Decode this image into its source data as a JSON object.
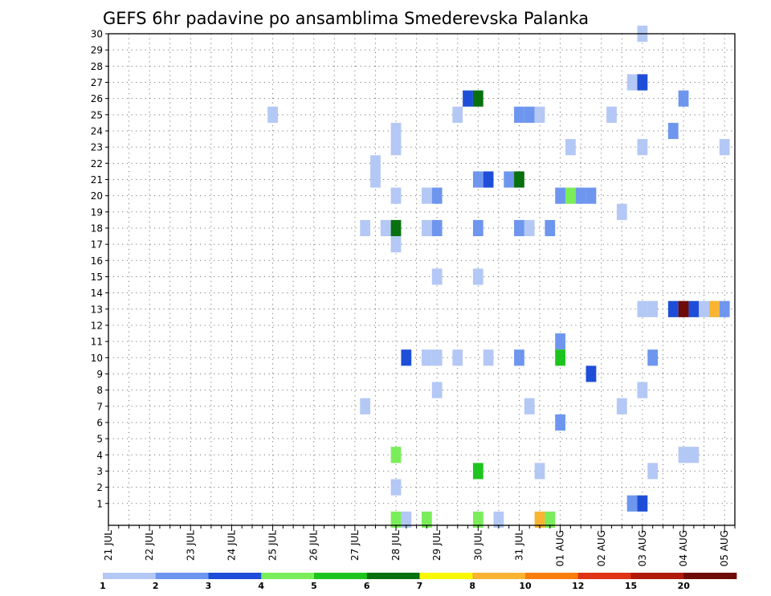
{
  "chart_data": {
    "type": "heatmap",
    "title": "GEFS 6hr padavine po ansamblima Smederevska Palanka",
    "xlabel": "",
    "ylabel": "",
    "x_start": "21 JUL 00Z",
    "x_step_hours": 6,
    "x_steps": 61,
    "xlim": [
      0,
      61
    ],
    "ylim": [
      0,
      30
    ],
    "grid": true,
    "x_ticks": [
      {
        "t": 0,
        "label": "21 JUL"
      },
      {
        "t": 4,
        "label": "22 JUL"
      },
      {
        "t": 8,
        "label": "23 JUL"
      },
      {
        "t": 12,
        "label": "24 JUL"
      },
      {
        "t": 16,
        "label": "25 JUL"
      },
      {
        "t": 20,
        "label": "26 JUL"
      },
      {
        "t": 24,
        "label": "27 JUL"
      },
      {
        "t": 28,
        "label": "28 JUL"
      },
      {
        "t": 32,
        "label": "29 JUL"
      },
      {
        "t": 36,
        "label": "30 JUL"
      },
      {
        "t": 40,
        "label": "31 JUL"
      },
      {
        "t": 44,
        "label": "01 AUG"
      },
      {
        "t": 48,
        "label": "02 AUG"
      },
      {
        "t": 52,
        "label": "03 AUG"
      },
      {
        "t": 56,
        "label": "04 AUG"
      },
      {
        "t": 60,
        "label": "05 AUG"
      }
    ],
    "y_ticks": [
      1,
      2,
      3,
      4,
      5,
      6,
      7,
      8,
      9,
      10,
      11,
      12,
      13,
      14,
      15,
      16,
      17,
      18,
      19,
      20,
      21,
      22,
      23,
      24,
      25,
      26,
      27,
      28,
      29,
      30
    ],
    "legend": {
      "placement": "bottom",
      "colors": [
        "#b4c8f5",
        "#6e96ee",
        "#1e4ed8",
        "#7aee5a",
        "#1ec41e",
        "#08700e",
        "#f8f800",
        "#fab432",
        "#f87e0e",
        "#e03214",
        "#b01a0a",
        "#6e0a08"
      ],
      "labels": [
        {
          "i": 0,
          "text": "1"
        },
        {
          "i": 1,
          "text": "2"
        },
        {
          "i": 2,
          "text": "3"
        },
        {
          "i": 3,
          "text": "4"
        },
        {
          "i": 4,
          "text": "5"
        },
        {
          "i": 5,
          "text": "6"
        },
        {
          "i": 6,
          "text": "7"
        },
        {
          "i": 7,
          "text": "8"
        },
        {
          "i": 8,
          "text": "10"
        },
        {
          "i": 9,
          "text": "12"
        },
        {
          "i": 10,
          "text": "15"
        },
        {
          "i": 11,
          "text": "20"
        }
      ]
    },
    "cells": [
      {
        "t": 52,
        "m": 30,
        "c": 0
      },
      {
        "t": 51,
        "m": 27,
        "c": 0
      },
      {
        "t": 52,
        "m": 27,
        "c": 2
      },
      {
        "t": 35,
        "m": 26,
        "c": 2
      },
      {
        "t": 36,
        "m": 26,
        "c": 5
      },
      {
        "t": 56,
        "m": 26,
        "c": 1
      },
      {
        "t": 16,
        "m": 25,
        "c": 0
      },
      {
        "t": 34,
        "m": 25,
        "c": 0
      },
      {
        "t": 40,
        "m": 25,
        "c": 1
      },
      {
        "t": 41,
        "m": 25,
        "c": 1
      },
      {
        "t": 42,
        "m": 25,
        "c": 0
      },
      {
        "t": 49,
        "m": 25,
        "c": 0
      },
      {
        "t": 55,
        "m": 24,
        "c": 1
      },
      {
        "t": 28,
        "m": 23.5,
        "c": 0,
        "h": 2
      },
      {
        "t": 45,
        "m": 23,
        "c": 0
      },
      {
        "t": 52,
        "m": 23,
        "c": 0
      },
      {
        "t": 60,
        "m": 23,
        "c": 0
      },
      {
        "t": 26,
        "m": 21.5,
        "c": 0,
        "h": 2
      },
      {
        "t": 36,
        "m": 21,
        "c": 1
      },
      {
        "t": 37,
        "m": 21,
        "c": 2
      },
      {
        "t": 39,
        "m": 21,
        "c": 1
      },
      {
        "t": 40,
        "m": 21,
        "c": 5
      },
      {
        "t": 28,
        "m": 20,
        "c": 0
      },
      {
        "t": 31,
        "m": 20,
        "c": 0
      },
      {
        "t": 32,
        "m": 20,
        "c": 1
      },
      {
        "t": 44,
        "m": 20,
        "c": 1
      },
      {
        "t": 45,
        "m": 20,
        "c": 3
      },
      {
        "t": 46,
        "m": 20,
        "c": 1
      },
      {
        "t": 47,
        "m": 20,
        "c": 1
      },
      {
        "t": 50,
        "m": 19,
        "c": 0
      },
      {
        "t": 25,
        "m": 18,
        "c": 0
      },
      {
        "t": 27,
        "m": 18,
        "c": 0
      },
      {
        "t": 28,
        "m": 18,
        "c": 5
      },
      {
        "t": 31,
        "m": 18,
        "c": 0
      },
      {
        "t": 32,
        "m": 18,
        "c": 1
      },
      {
        "t": 36,
        "m": 18,
        "c": 1
      },
      {
        "t": 40,
        "m": 18,
        "c": 1
      },
      {
        "t": 41,
        "m": 18,
        "c": 0
      },
      {
        "t": 43,
        "m": 18,
        "c": 1
      },
      {
        "t": 28,
        "m": 17,
        "c": 0
      },
      {
        "t": 32,
        "m": 15,
        "c": 0
      },
      {
        "t": 36,
        "m": 15,
        "c": 0
      },
      {
        "t": 52,
        "m": 13,
        "c": 0
      },
      {
        "t": 53,
        "m": 13,
        "c": 0
      },
      {
        "t": 55,
        "m": 13,
        "c": 2
      },
      {
        "t": 56,
        "m": 13,
        "c": 11
      },
      {
        "t": 57,
        "m": 13,
        "c": 2
      },
      {
        "t": 58,
        "m": 13,
        "c": 0
      },
      {
        "t": 59,
        "m": 13,
        "c": 7
      },
      {
        "t": 60,
        "m": 13,
        "c": 1
      },
      {
        "t": 44,
        "m": 11,
        "c": 1
      },
      {
        "t": 29,
        "m": 10,
        "c": 2
      },
      {
        "t": 31,
        "m": 10,
        "c": 0
      },
      {
        "t": 32,
        "m": 10,
        "c": 0
      },
      {
        "t": 34,
        "m": 10,
        "c": 0
      },
      {
        "t": 37,
        "m": 10,
        "c": 0
      },
      {
        "t": 40,
        "m": 10,
        "c": 1
      },
      {
        "t": 44,
        "m": 10,
        "c": 4
      },
      {
        "t": 53,
        "m": 10,
        "c": 1
      },
      {
        "t": 47,
        "m": 9,
        "c": 2
      },
      {
        "t": 32,
        "m": 8,
        "c": 0
      },
      {
        "t": 52,
        "m": 8,
        "c": 0
      },
      {
        "t": 25,
        "m": 7,
        "c": 0
      },
      {
        "t": 41,
        "m": 7,
        "c": 0
      },
      {
        "t": 50,
        "m": 7,
        "c": 0
      },
      {
        "t": 44,
        "m": 6,
        "c": 1
      },
      {
        "t": 28,
        "m": 4,
        "c": 3
      },
      {
        "t": 56,
        "m": 4,
        "c": 0
      },
      {
        "t": 57,
        "m": 4,
        "c": 0
      },
      {
        "t": 36,
        "m": 3,
        "c": 4
      },
      {
        "t": 42,
        "m": 3,
        "c": 0
      },
      {
        "t": 53,
        "m": 3,
        "c": 0
      },
      {
        "t": 28,
        "m": 2,
        "c": 0
      },
      {
        "t": 51,
        "m": 1,
        "c": 1
      },
      {
        "t": 52,
        "m": 1,
        "c": 2
      },
      {
        "t": 28,
        "m": 0,
        "c": 3
      },
      {
        "t": 29,
        "m": 0,
        "c": 0
      },
      {
        "t": 31,
        "m": 0,
        "c": 3
      },
      {
        "t": 36,
        "m": 0,
        "c": 3
      },
      {
        "t": 38,
        "m": 0,
        "c": 0
      },
      {
        "t": 42,
        "m": 0,
        "c": 7
      },
      {
        "t": 43,
        "m": 0,
        "c": 3
      }
    ]
  }
}
